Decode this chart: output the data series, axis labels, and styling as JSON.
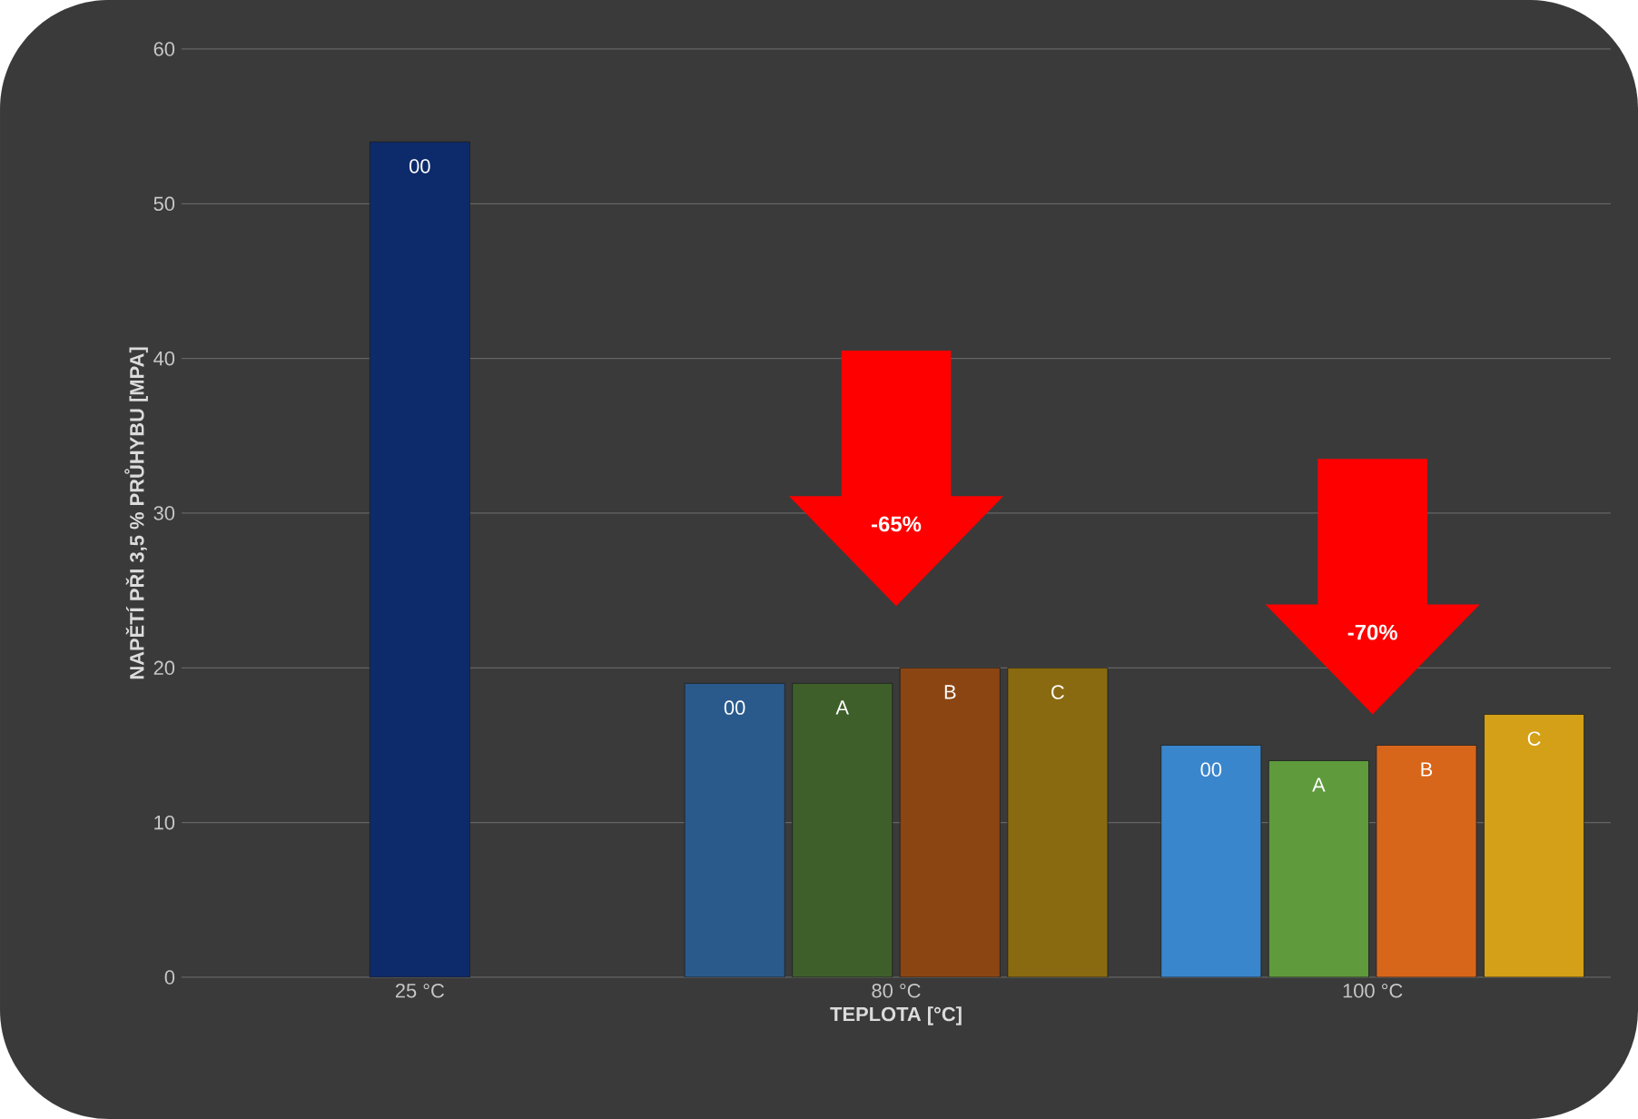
{
  "chart_data": {
    "type": "bar",
    "xlabel": "TEPLOTA [°C]",
    "ylabel": "NAPĚTÍ PŘI 3,5 % PRŮHYBU [MPA]",
    "categories": [
      "25 °C",
      "80 °C",
      "100 °C"
    ],
    "series": [
      {
        "name": "00",
        "colors": [
          "#0d2a6b",
          "#2a5a8c",
          "#3a86cc"
        ],
        "values": [
          54,
          19,
          15
        ]
      },
      {
        "name": "A",
        "colors": [
          null,
          "#3e5f2a",
          "#5f9a3c"
        ],
        "values": [
          null,
          19,
          14
        ]
      },
      {
        "name": "B",
        "colors": [
          null,
          "#8b4512",
          "#d8661a"
        ],
        "values": [
          null,
          20,
          15
        ]
      },
      {
        "name": "C",
        "colors": [
          null,
          "#8a6a10",
          "#d4a017"
        ],
        "values": [
          null,
          20,
          17
        ]
      }
    ],
    "ylim": [
      0,
      60
    ],
    "yticks": [
      0,
      10,
      20,
      30,
      40,
      50,
      60
    ],
    "grid": "y",
    "annotations": [
      "-65%",
      "-70%"
    ]
  }
}
